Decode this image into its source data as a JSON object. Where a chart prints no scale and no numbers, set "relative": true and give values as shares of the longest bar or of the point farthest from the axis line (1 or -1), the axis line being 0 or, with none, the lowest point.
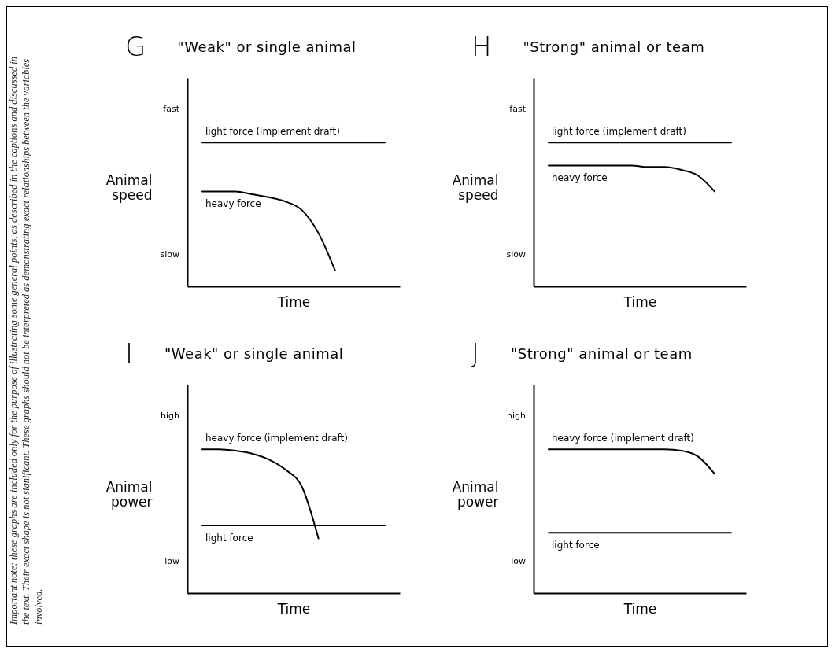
{
  "chart_data": [
    {
      "type": "line",
      "title": "G",
      "subtitle": "\"Weak\" or single animal",
      "xlabel": "Time",
      "ylabel": "Animal speed",
      "relative": true,
      "tick_labels": false,
      "annotations": [
        "Important note: these graphs are included only for the purpose of illustrating some general points, as described in the captions and discussed in the text. Their exact shape is not significant. These graphs should not be interpreted as demonstrating exact relationships between the variables involved.",
        "fast",
        "slow"
      ],
      "categories": [
        null,
        null,
        null,
        null,
        null,
        null,
        null,
        null,
        null,
        null,
        null,
        null
      ],
      "series": [
        {
          "name": "light force (implement draft)",
          "color": "#000000",
          "values": [
            1,
            1,
            1,
            1,
            1,
            1,
            1,
            1,
            1,
            1,
            1,
            1
          ]
        },
        {
          "name": "heavy force",
          "color": "#000000",
          "values": [
            0.66,
            0.66,
            0.66,
            0.64,
            0.62,
            0.59,
            0.53,
            0.37,
            0.11,
            null,
            null,
            null
          ]
        }
      ]
    },
    {
      "type": "line",
      "title": "H",
      "subtitle": "\"Strong\" animal or team",
      "xlabel": "Time",
      "ylabel": "Animal speed",
      "relative": true,
      "tick_labels": false,
      "annotations": [
        "fast",
        "slow"
      ],
      "categories": [
        null,
        null,
        null,
        null,
        null,
        null,
        null,
        null,
        null,
        null,
        null,
        null
      ],
      "series": [
        {
          "name": "light force (implement draft)",
          "color": "#000000",
          "values": [
            1,
            1,
            1,
            1,
            1,
            1,
            1,
            1,
            1,
            1,
            1,
            1
          ]
        },
        {
          "name": "heavy force",
          "color": "#000000",
          "values": [
            0.84,
            0.84,
            0.84,
            0.84,
            0.84,
            0.84,
            0.83,
            0.83,
            0.81,
            0.77,
            0.66,
            null
          ]
        }
      ]
    },
    {
      "type": "line",
      "title": "I",
      "subtitle": "\"Weak\" or single animal",
      "xlabel": "Time",
      "ylabel": "Animal power",
      "relative": true,
      "tick_labels": false,
      "annotations": [
        "high",
        "low"
      ],
      "categories": [
        null,
        null,
        null,
        null,
        null,
        null,
        null,
        null,
        null,
        null,
        null,
        null
      ],
      "series": [
        {
          "name": "heavy force (implement draft)",
          "color": "#000000",
          "values": [
            1,
            1,
            0.99,
            0.97,
            0.93,
            0.86,
            0.74,
            0.38,
            null,
            null,
            null,
            null
          ]
        },
        {
          "name": "light force",
          "color": "#000000",
          "values": [
            0.47,
            0.47,
            0.47,
            0.47,
            0.47,
            0.47,
            0.47,
            0.47,
            0.47,
            0.47,
            0.47,
            0.47
          ]
        }
      ]
    },
    {
      "type": "line",
      "title": "J",
      "subtitle": "\"Strong\" animal or team",
      "xlabel": "Time",
      "ylabel": "Animal power",
      "relative": true,
      "tick_labels": false,
      "annotations": [
        "high",
        "low"
      ],
      "categories": [
        null,
        null,
        null,
        null,
        null,
        null,
        null,
        null,
        null,
        null,
        null,
        null
      ],
      "series": [
        {
          "name": "heavy force (implement draft)",
          "color": "#000000",
          "values": [
            1,
            1,
            1,
            1,
            1,
            1,
            1,
            1,
            0.99,
            0.95,
            0.83,
            null
          ]
        },
        {
          "name": "light force",
          "color": "#000000",
          "values": [
            0.42,
            0.42,
            0.42,
            0.42,
            0.42,
            0.42,
            0.42,
            0.42,
            0.42,
            0.42,
            0.42,
            0.42
          ]
        }
      ]
    }
  ]
}
